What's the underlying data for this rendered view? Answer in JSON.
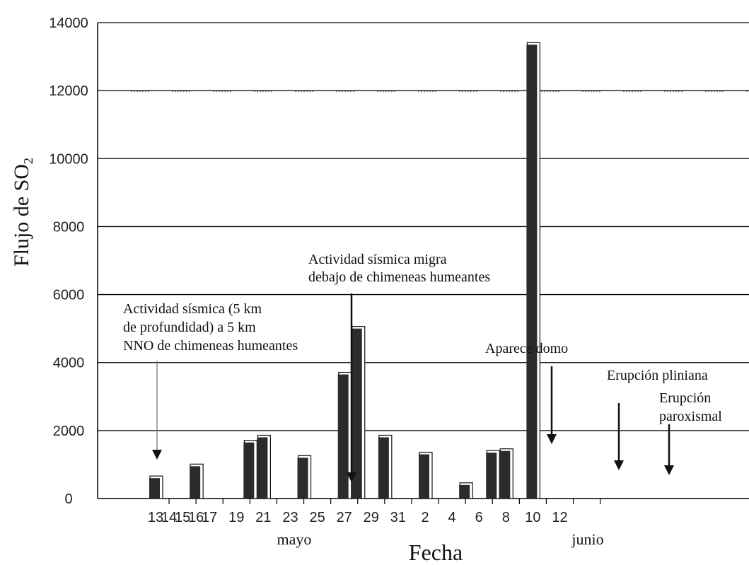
{
  "chart_data": {
    "type": "bar",
    "ylabel": "Flujo de SO",
    "ylabel_sub": "2",
    "xlabel": "Fecha",
    "ylim": [
      0,
      14000
    ],
    "y_ticks": [
      "0",
      "2000",
      "4000",
      "6000",
      "8000",
      "10000",
      "12000",
      "14000"
    ],
    "x_ticks": [
      "13",
      "15",
      "17",
      "19",
      "21",
      "23",
      "25",
      "27",
      "29",
      "31",
      "2",
      "4",
      "6",
      "8",
      "10",
      "12",
      "14",
      "16"
    ],
    "month_labels": [
      "mayo",
      "junio"
    ],
    "grid": "horizontal",
    "series": [
      {
        "x": [
          "13",
          "16",
          "20",
          "21",
          "24",
          "27",
          "28",
          "30",
          "2",
          "5",
          "7",
          "8",
          "10"
        ],
        "values": [
          600,
          950,
          1650,
          1800,
          1200,
          3650,
          5000,
          1800,
          1300,
          400,
          1350,
          1400,
          13350
        ]
      }
    ],
    "annotations": [
      {
        "lines": [
          "Actividad sísmica (5 km",
          "de profundidad) a 5 km",
          "NNO de chimeneas humeantes"
        ],
        "date": "13"
      },
      {
        "lines": [
          "Actividad sísmica migra",
          "debajo de chimeneas humeantes"
        ],
        "date": "25"
      },
      {
        "lines": [
          "Aparece domo"
        ],
        "date": "7"
      },
      {
        "lines": [
          "Erupción pliniana"
        ],
        "date": "11"
      },
      {
        "lines": [
          "Erupción",
          "paroxismal"
        ],
        "date": "14"
      }
    ]
  },
  "colors": {
    "bar": "#2b2b2b",
    "grid": "#000000",
    "arrow_dark": "#111111",
    "arrow_light": "#777777"
  }
}
